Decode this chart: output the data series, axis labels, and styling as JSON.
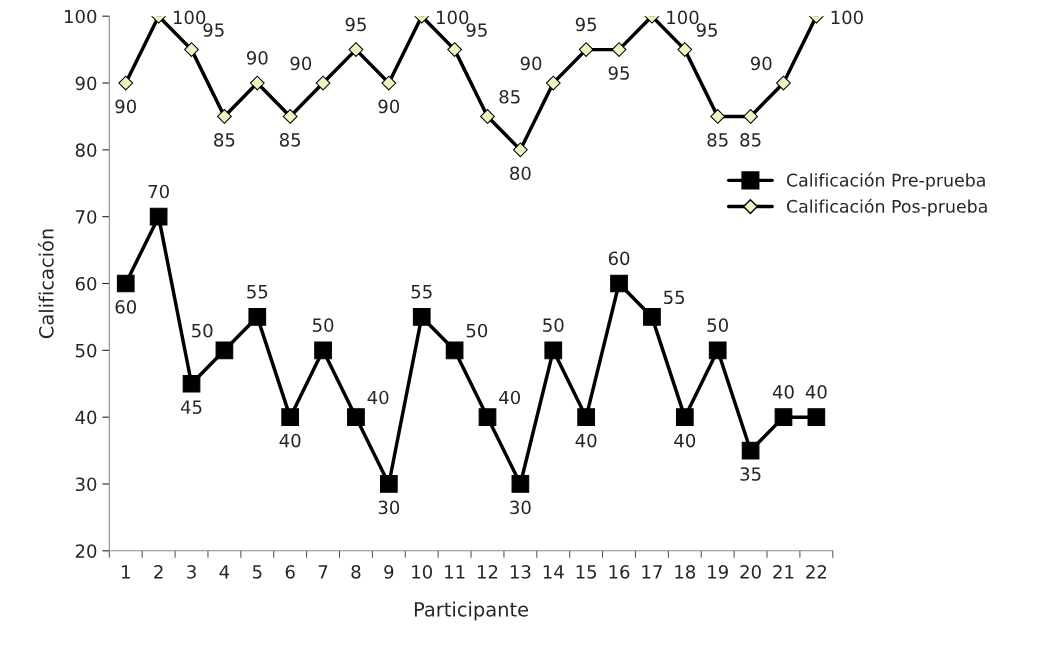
{
  "chart_data": {
    "type": "line",
    "xlabel": "Participante",
    "ylabel": "Calificación",
    "categories": [
      "1",
      "2",
      "3",
      "4",
      "5",
      "6",
      "7",
      "8",
      "9",
      "10",
      "11",
      "12",
      "13",
      "14",
      "15",
      "16",
      "17",
      "18",
      "19",
      "20",
      "21",
      "22"
    ],
    "series": [
      {
        "name": "Calificación Pre-prueba",
        "color": "#000000",
        "marker": "square",
        "values": [
          60,
          70,
          45,
          50,
          55,
          40,
          50,
          40,
          30,
          55,
          50,
          40,
          30,
          50,
          40,
          60,
          55,
          40,
          50,
          35,
          40,
          40
        ]
      },
      {
        "name": "Calificación Pos-prueba",
        "color": "#000000",
        "marker": "diamond",
        "values": [
          90,
          100,
          95,
          85,
          90,
          85,
          90,
          95,
          90,
          100,
          95,
          85,
          80,
          90,
          95,
          95,
          100,
          95,
          85,
          85,
          90,
          100
        ]
      }
    ],
    "ylim": [
      20,
      100
    ],
    "yticks": [
      20,
      30,
      40,
      50,
      60,
      70,
      80,
      90,
      100
    ],
    "data_labels": true,
    "legend": "right",
    "grid": false,
    "line_style": "solid"
  }
}
